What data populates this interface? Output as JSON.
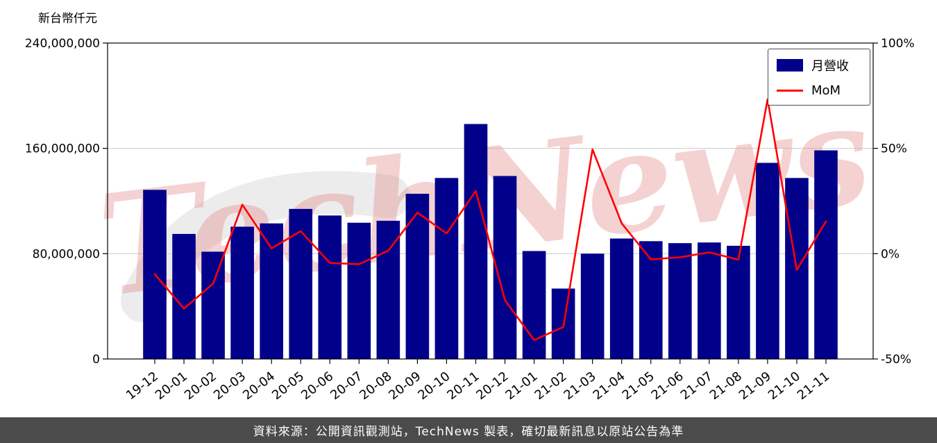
{
  "unit_label": "新台幣仟元",
  "watermark_text": "TechNews",
  "legend": {
    "bar_label": "月營收",
    "line_label": "MoM"
  },
  "footer_text": "資料來源：公開資訊觀測站，TechNews 製表，確切最新訊息以原站公告為準",
  "colors": {
    "bar": "#00008B",
    "line": "#FF0000",
    "grid": "#cccccc",
    "axis": "#000000",
    "footer_bg": "#4b4b4b",
    "footer_text": "#ffffff",
    "watermark_pink": "#e59090",
    "watermark_gray": "#d9d9d9"
  },
  "chart_data": {
    "type": "bar",
    "title": "",
    "xlabel": "",
    "ylabel_left": "新台幣仟元",
    "ylabel_right": "%",
    "grid": true,
    "legend_position": "top-right",
    "categories": [
      "19-12",
      "20-01",
      "20-02",
      "20-03",
      "20-04",
      "20-05",
      "20-06",
      "20-07",
      "20-08",
      "20-09",
      "20-10",
      "20-11",
      "20-12",
      "21-01",
      "21-02",
      "21-03",
      "21-04",
      "21-05",
      "21-06",
      "21-07",
      "21-08",
      "21-09",
      "21-10",
      "21-11"
    ],
    "series": [
      {
        "name": "月營收",
        "type": "bar",
        "axis": "left",
        "unit": "新台幣仟元",
        "color": "#00008B",
        "values": [
          128500000,
          95000000,
          81500000,
          100500000,
          103000000,
          114000000,
          109000000,
          103500000,
          105000000,
          125500000,
          137500000,
          178500000,
          139000000,
          82000000,
          53500000,
          80000000,
          91500000,
          89500000,
          88000000,
          88500000,
          86000000,
          149000000,
          137500000,
          158500000
        ]
      },
      {
        "name": "MoM",
        "type": "line",
        "axis": "right",
        "unit": "%",
        "color": "#FF0000",
        "values": [
          -9.7,
          -26.1,
          -14.2,
          23.3,
          2.5,
          10.7,
          -4.4,
          -5.0,
          1.4,
          19.5,
          9.6,
          29.8,
          -22.1,
          -41.0,
          -34.8,
          49.5,
          14.4,
          -2.7,
          -1.7,
          0.6,
          -2.8,
          73.3,
          -7.7,
          15.3
        ]
      }
    ],
    "left_axis": {
      "label": "新台幣仟元",
      "range": [
        0,
        240000000
      ],
      "ticks": [
        0,
        80000000,
        160000000,
        240000000
      ]
    },
    "right_axis": {
      "label": "MoM",
      "range": [
        -50,
        100
      ],
      "ticks": [
        -50,
        0,
        50,
        100
      ],
      "tick_format": "percent"
    }
  }
}
